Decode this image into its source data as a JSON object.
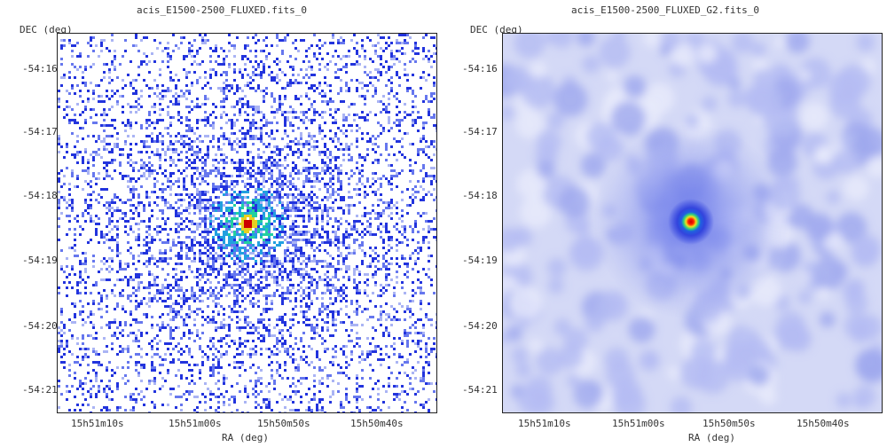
{
  "panels": [
    {
      "title": "acis_E1500-2500_FLUXED.fits_0",
      "y_axis_label": "DEC (deg)",
      "x_axis_label": "RA (deg)",
      "y_ticks": [
        "-54:16",
        "-54:17",
        "-54:18",
        "-54:19",
        "-54:20",
        "-54:21"
      ],
      "x_ticks": [
        "15h51m10s",
        "15h51m00s",
        "15h50m50s",
        "15h50m40s"
      ],
      "style": "pixelated",
      "colors": {
        "low": "#c8d0f8",
        "mid": "#2233dd",
        "high": "#22d0a0",
        "peak": "#cc0000"
      }
    },
    {
      "title": "acis_E1500-2500_FLUXED_G2.fits_0",
      "y_axis_label": "DEC (deg)",
      "x_axis_label": "RA (deg)",
      "y_ticks": [
        "-54:16",
        "-54:17",
        "-54:18",
        "-54:19",
        "-54:20",
        "-54:21"
      ],
      "x_ticks": [
        "15h51m10s",
        "15h51m00s",
        "15h50m50s",
        "15h50m40s"
      ],
      "style": "smoothed",
      "colors": {
        "low": "#c8d0f8",
        "mid": "#2233dd",
        "high": "#22d0a0",
        "peak": "#cc0000"
      }
    }
  ]
}
